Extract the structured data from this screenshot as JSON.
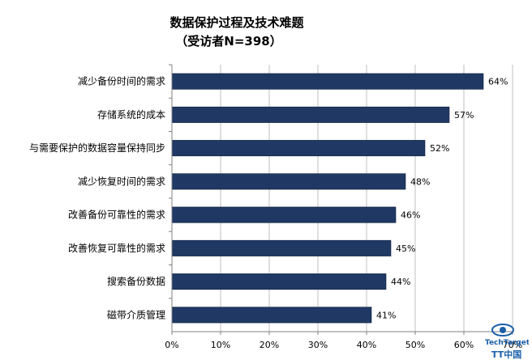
{
  "chart_data": {
    "type": "bar",
    "orientation": "horizontal",
    "title": "数据保护过程及技术难题",
    "subtitle": "（受访者N=398）",
    "categories": [
      "减少备份时间的需求",
      "存储系统的成本",
      "与需要保护的数据容量保持同步",
      "减少恢复时间的需求",
      "改善备份可靠性的需求",
      "改善恢复可靠性的需求",
      "搜索备份数据",
      "磁带介质管理"
    ],
    "values": [
      64,
      57,
      52,
      48,
      46,
      45,
      44,
      41
    ],
    "value_labels": [
      "64%",
      "57%",
      "52%",
      "48%",
      "46%",
      "45%",
      "44%",
      "41%"
    ],
    "xlim": [
      0,
      70
    ],
    "x_ticks": [
      "0%",
      "10%",
      "20%",
      "30%",
      "40%",
      "50%",
      "60%",
      "70%"
    ],
    "grid": true,
    "bar_color": "#1f3864",
    "xlabel": "",
    "ylabel": ""
  },
  "logo": {
    "icon": "eye-logo-icon",
    "text": "TechTarget",
    "text2": "TT中国",
    "color": "#1a5fa8"
  }
}
